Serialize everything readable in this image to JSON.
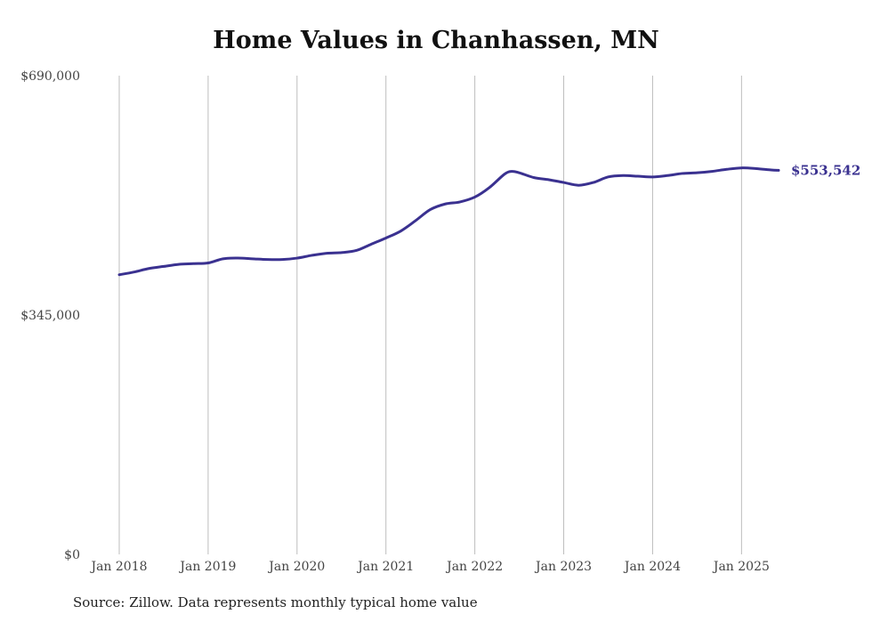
{
  "chart_data": {
    "type": "line",
    "title": "Home Values in Chanhassen, MN",
    "source": "Source: Zillow. Data represents monthly typical home value",
    "ylim": [
      0,
      690000
    ],
    "y_ticks": [
      0,
      345000,
      690000
    ],
    "y_tick_labels": [
      "$0",
      "$345,000",
      "$690,000"
    ],
    "x_tick_labels": [
      "Jan 2018",
      "Jan 2019",
      "Jan 2020",
      "Jan 2021",
      "Jan 2022",
      "Jan 2023",
      "Jan 2024",
      "Jan 2025"
    ],
    "x_tick_dates": [
      "2018-01",
      "2019-01",
      "2020-01",
      "2021-01",
      "2022-01",
      "2023-01",
      "2024-01",
      "2025-01"
    ],
    "grid": "vertical",
    "line_color": "#3a3190",
    "end_label": "$553,542",
    "series": [
      {
        "x": [
          "2018-01",
          "2018-03",
          "2018-05",
          "2018-07",
          "2018-09",
          "2018-11",
          "2019-01",
          "2019-03",
          "2019-05",
          "2019-07",
          "2019-09",
          "2019-11",
          "2020-01",
          "2020-03",
          "2020-05",
          "2020-07",
          "2020-09",
          "2020-11",
          "2021-01",
          "2021-03",
          "2021-05",
          "2021-07",
          "2021-09",
          "2021-11",
          "2022-01",
          "2022-03",
          "2022-05",
          "2022-06",
          "2022-07",
          "2022-09",
          "2022-11",
          "2023-01",
          "2023-03",
          "2023-05",
          "2023-07",
          "2023-09",
          "2023-11",
          "2024-01",
          "2024-03",
          "2024-05",
          "2024-07",
          "2024-09",
          "2024-11",
          "2025-01",
          "2025-03",
          "2025-05",
          "2025-06"
        ],
        "values": [
          403000,
          407000,
          412000,
          415000,
          418000,
          419000,
          420000,
          426000,
          427000,
          426000,
          425000,
          425000,
          427000,
          431000,
          434000,
          435000,
          438000,
          447000,
          456000,
          466000,
          481000,
          497000,
          505000,
          508000,
          515000,
          529000,
          548000,
          552000,
          550000,
          543000,
          540000,
          536000,
          532000,
          536000,
          544000,
          546000,
          545000,
          544000,
          546000,
          549000,
          550000,
          552000,
          555000,
          557000,
          556000,
          554000,
          553542
        ]
      }
    ]
  }
}
